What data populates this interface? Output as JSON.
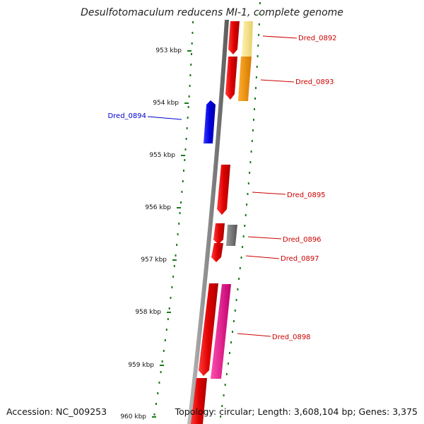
{
  "title": "Desulfotomaculum reducens MI-1, complete genome",
  "footer": {
    "accession": "Accession: NC_009253",
    "summary": "Topology: circular; Length: 3,608,104 bp; Genes: 3,375"
  },
  "axis": {
    "ticks": [
      "953 kbp",
      "954 kbp",
      "955 kbp",
      "956 kbp",
      "957 kbp",
      "958 kbp",
      "959 kbp",
      "960 kbp"
    ]
  },
  "genes": [
    {
      "label": "Dred_0892",
      "color": "#cc0000",
      "strand": "forward"
    },
    {
      "label": "Dred_0893",
      "color": "#cc0000",
      "strand": "forward"
    },
    {
      "label": "Dred_0894",
      "color": "#0000cc",
      "strand": "reverse"
    },
    {
      "label": "Dred_0895",
      "color": "#cc0000",
      "strand": "forward"
    },
    {
      "label": "Dred_0896",
      "color": "#cc0000",
      "strand": "forward"
    },
    {
      "label": "Dred_0897",
      "color": "#cc0000",
      "strand": "forward"
    },
    {
      "label": "Dred_0898",
      "color": "#cc0000",
      "strand": "forward"
    }
  ],
  "colors": {
    "forward_gene": "#ee0000",
    "reverse_gene": "#0000ee",
    "cds_yellow": "#f5e08a",
    "cds_orange": "#f39200",
    "cds_grey": "#777777",
    "cds_magenta": "#e0198a",
    "tick_green": "#1a7a1a",
    "backbone": "#888888"
  }
}
